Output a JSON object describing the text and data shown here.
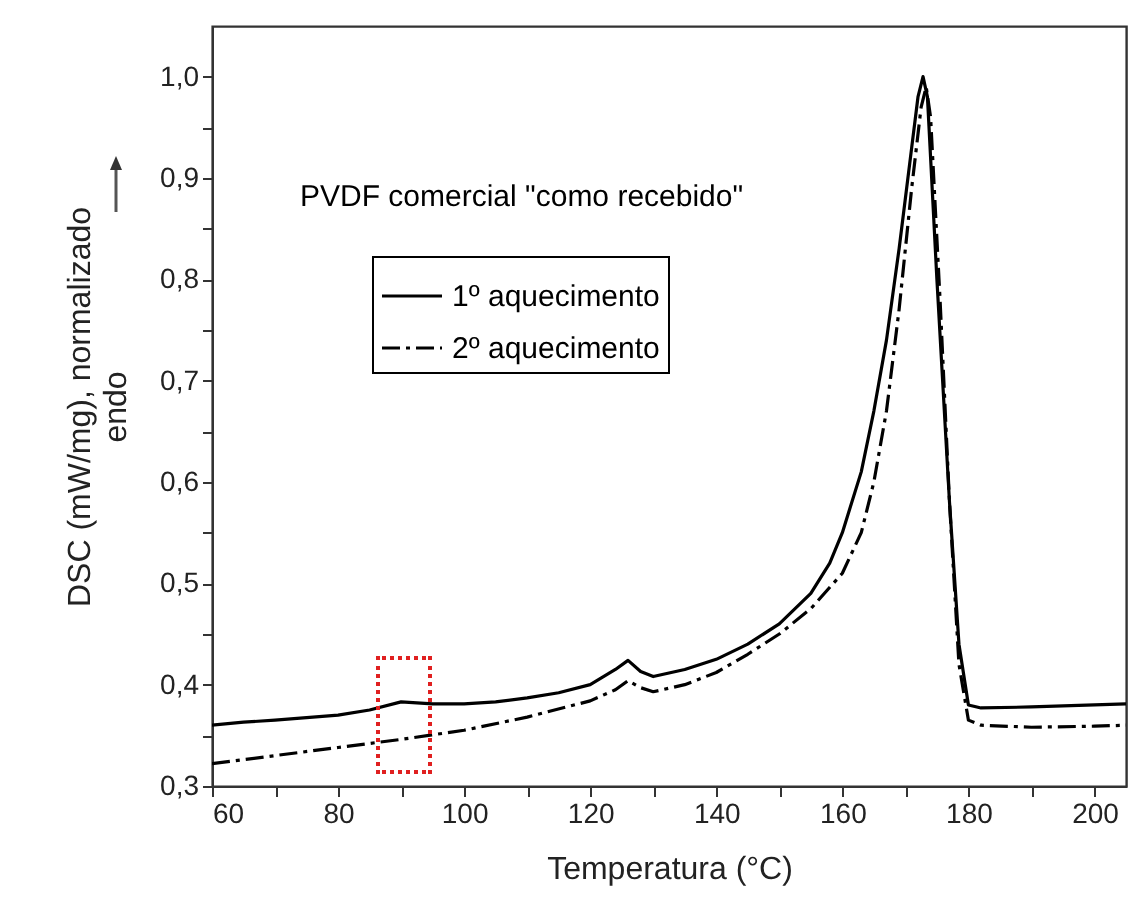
{
  "chart_data": {
    "type": "line",
    "xlabel": "Temperatura (°C)",
    "ylabel": "DSC (mW/mg), normalizado\nendo",
    "annotations": [
      "PVDF comercial \"como recebido\""
    ],
    "series": [
      {
        "name": "1º aquecimento",
        "color": "#000000",
        "line_style": "solid",
        "x": [
          60,
          65,
          70,
          80,
          85,
          90,
          95,
          100,
          105,
          110,
          115,
          120,
          124,
          126,
          128,
          130,
          135,
          140,
          145,
          150,
          155,
          158,
          160,
          163,
          165,
          167,
          169,
          171,
          172,
          172.8,
          173.5,
          175,
          177,
          178.5,
          180,
          182,
          190,
          200,
          205
        ],
        "values": [
          0.36,
          0.363,
          0.365,
          0.37,
          0.375,
          0.383,
          0.381,
          0.381,
          0.383,
          0.387,
          0.392,
          0.4,
          0.415,
          0.424,
          0.413,
          0.408,
          0.415,
          0.425,
          0.44,
          0.46,
          0.49,
          0.52,
          0.55,
          0.61,
          0.67,
          0.74,
          0.83,
          0.93,
          0.98,
          1.0,
          0.98,
          0.8,
          0.58,
          0.44,
          0.38,
          0.377,
          0.378,
          0.38,
          0.381
        ]
      },
      {
        "name": "2º aquecimento",
        "color": "#000000",
        "line_style": "dashdot",
        "x": [
          60,
          70,
          80,
          90,
          100,
          110,
          120,
          124,
          126,
          128,
          130,
          135,
          140,
          145,
          150,
          155,
          160,
          163,
          165,
          167,
          169,
          171,
          172.5,
          173.3,
          174,
          175.5,
          177,
          178.5,
          180,
          182,
          190,
          200,
          205
        ],
        "values": [
          0.322,
          0.33,
          0.338,
          0.346,
          0.355,
          0.368,
          0.384,
          0.395,
          0.404,
          0.397,
          0.393,
          0.4,
          0.412,
          0.43,
          0.45,
          0.475,
          0.51,
          0.55,
          0.6,
          0.67,
          0.77,
          0.89,
          0.97,
          0.99,
          0.96,
          0.78,
          0.58,
          0.42,
          0.365,
          0.36,
          0.358,
          0.359,
          0.36
        ]
      }
    ],
    "xlim": [
      60,
      205
    ],
    "ylim": [
      0.3,
      1.05
    ],
    "xticks": [
      60,
      {
        "value": 70,
        "label": null
      },
      80,
      {
        "value": 90,
        "label": null
      },
      100,
      {
        "value": 110,
        "label": null
      },
      120,
      {
        "value": 130,
        "label": null
      },
      140,
      {
        "value": 150,
        "label": null
      },
      160,
      {
        "value": 170,
        "label": null
      },
      180,
      {
        "value": 190,
        "label": null
      },
      200
    ],
    "yticks": [
      {
        "value": 0.3,
        "label": "0,3"
      },
      {
        "value": 0.35,
        "label": null
      },
      {
        "value": 0.4,
        "label": "0,4"
      },
      {
        "value": 0.45,
        "label": null
      },
      {
        "value": 0.5,
        "label": "0,5"
      },
      {
        "value": 0.55,
        "label": null
      },
      {
        "value": 0.6,
        "label": "0,6"
      },
      {
        "value": 0.65,
        "label": null
      },
      {
        "value": 0.7,
        "label": "0,7"
      },
      {
        "value": 0.75,
        "label": null
      },
      {
        "value": 0.8,
        "label": "0,8"
      },
      {
        "value": 0.85,
        "label": null
      },
      {
        "value": 0.9,
        "label": "0,9"
      },
      {
        "value": 0.95,
        "label": null
      },
      {
        "value": 1.0,
        "label": "1,0"
      }
    ],
    "legend": "top left",
    "grid": false
  }
}
